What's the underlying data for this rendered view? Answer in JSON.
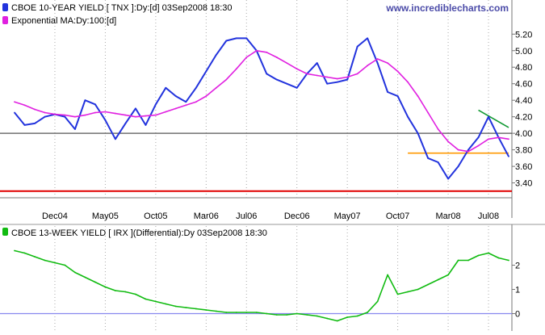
{
  "watermark": "www.incrediblecharts.com",
  "colors": {
    "price": "#2233dd",
    "ema": "#e020e0",
    "differential": "#11bb11",
    "support": "#e00000",
    "resistance": "#ff9900",
    "trendline": "#119933",
    "midline": "#555555",
    "zeroline": "#8888ee",
    "grid": "#aaaaaa",
    "watermark": "#4b4ba8"
  },
  "chart_data": [
    {
      "type": "line",
      "legend": [
        {
          "label": "CBOE 10-YEAR YIELD [ TNX ]:Dy:[d]  03Sep2008 18:30",
          "color": "#2233dd"
        },
        {
          "label": "Exponential MA:Dy:100:[d]",
          "color": "#e020e0"
        }
      ],
      "x_ticks": [
        "Dec04",
        "May05",
        "Oct05",
        "Mar06",
        "Jul06",
        "Dec06",
        "May07",
        "Oct07",
        "Mar08",
        "Jul08"
      ],
      "y_ticks": [
        "3.40",
        "3.60",
        "3.80",
        "4.00",
        "4.20",
        "4.40",
        "4.60",
        "4.80",
        "5.00",
        "5.20"
      ],
      "ylim": [
        3.22,
        5.32
      ],
      "x": [
        "Aug04",
        "Sep04",
        "Oct04",
        "Nov04",
        "Dec04",
        "Jan05",
        "Feb05",
        "Mar05",
        "Apr05",
        "May05",
        "Jun05",
        "Jul05",
        "Aug05",
        "Sep05",
        "Oct05",
        "Nov05",
        "Dec05",
        "Jan06",
        "Feb06",
        "Mar06",
        "Apr06",
        "May06",
        "Jun06",
        "Jul06",
        "Aug06",
        "Sep06",
        "Oct06",
        "Nov06",
        "Dec06",
        "Jan07",
        "Feb07",
        "Mar07",
        "Apr07",
        "May07",
        "Jun07",
        "Jul07",
        "Aug07",
        "Sep07",
        "Oct07",
        "Nov07",
        "Dec07",
        "Jan08",
        "Feb08",
        "Mar08",
        "Apr08",
        "May08",
        "Jun08",
        "Jul08",
        "Aug08",
        "Sep08"
      ],
      "series": [
        {
          "name": "CBOE 10-YEAR YIELD [ TNX ]",
          "values": [
            4.25,
            4.1,
            4.12,
            4.2,
            4.23,
            4.2,
            4.05,
            4.4,
            4.35,
            4.16,
            3.93,
            4.12,
            4.3,
            4.1,
            4.35,
            4.55,
            4.45,
            4.38,
            4.55,
            4.75,
            4.95,
            5.12,
            5.15,
            5.15,
            5.0,
            4.72,
            4.65,
            4.6,
            4.55,
            4.72,
            4.85,
            4.6,
            4.62,
            4.65,
            5.05,
            5.15,
            4.85,
            4.5,
            4.45,
            4.2,
            4.0,
            3.7,
            3.65,
            3.45,
            3.6,
            3.8,
            3.95,
            4.2,
            3.95,
            3.72
          ]
        },
        {
          "name": "Exponential MA:Dy:100",
          "values": [
            4.38,
            4.34,
            4.29,
            4.25,
            4.23,
            4.22,
            4.2,
            4.22,
            4.25,
            4.26,
            4.24,
            4.22,
            4.2,
            4.21,
            4.22,
            4.26,
            4.3,
            4.34,
            4.38,
            4.45,
            4.55,
            4.65,
            4.78,
            4.92,
            5.0,
            4.98,
            4.92,
            4.85,
            4.78,
            4.72,
            4.7,
            4.68,
            4.66,
            4.68,
            4.72,
            4.82,
            4.9,
            4.85,
            4.75,
            4.62,
            4.45,
            4.25,
            4.05,
            3.9,
            3.8,
            3.78,
            3.85,
            3.93,
            3.95,
            3.93
          ]
        }
      ],
      "reference_lines": [
        {
          "kind": "horizontal",
          "y": 4.0,
          "color": "#555555"
        },
        {
          "kind": "horizontal",
          "y": 3.3,
          "color": "#e00000"
        },
        {
          "kind": "segment",
          "from": [
            "Nov07",
            3.76
          ],
          "to": [
            "Sep08",
            3.76
          ],
          "color": "#ff9900"
        },
        {
          "kind": "segment",
          "from": [
            "Jun08",
            4.28
          ],
          "to": [
            "Sep08",
            4.07
          ],
          "color": "#119933"
        }
      ]
    },
    {
      "type": "line",
      "legend": [
        {
          "label": "CBOE 13-WEEK YIELD [ IRX ](Differential):Dy  03Sep2008 18:30",
          "color": "#11bb11"
        }
      ],
      "y_ticks": [
        "0",
        "1",
        "2"
      ],
      "ylim": [
        -0.55,
        2.95
      ],
      "x": [
        "Aug04",
        "Sep04",
        "Oct04",
        "Nov04",
        "Dec04",
        "Jan05",
        "Feb05",
        "Mar05",
        "Apr05",
        "May05",
        "Jun05",
        "Jul05",
        "Aug05",
        "Sep05",
        "Oct05",
        "Nov05",
        "Dec05",
        "Jan06",
        "Feb06",
        "Mar06",
        "Apr06",
        "May06",
        "Jun06",
        "Jul06",
        "Aug06",
        "Sep06",
        "Oct06",
        "Nov06",
        "Dec06",
        "Jan07",
        "Feb07",
        "Mar07",
        "Apr07",
        "May07",
        "Jun07",
        "Jul07",
        "Aug07",
        "Sep07",
        "Oct07",
        "Nov07",
        "Dec07",
        "Jan08",
        "Feb08",
        "Mar08",
        "Apr08",
        "May08",
        "Jun08",
        "Jul08",
        "Aug08",
        "Sep08"
      ],
      "series": [
        {
          "name": "CBOE 13-WEEK YIELD [ IRX ](Differential)",
          "values": [
            2.6,
            2.5,
            2.35,
            2.2,
            2.1,
            2.0,
            1.7,
            1.5,
            1.3,
            1.1,
            0.95,
            0.9,
            0.8,
            0.6,
            0.5,
            0.4,
            0.3,
            0.25,
            0.2,
            0.15,
            0.1,
            0.05,
            0.05,
            0.05,
            0.05,
            0.0,
            -0.05,
            -0.05,
            0.0,
            -0.05,
            -0.1,
            -0.2,
            -0.3,
            -0.15,
            -0.1,
            0.05,
            0.5,
            1.6,
            0.8,
            0.9,
            1.0,
            1.2,
            1.4,
            1.6,
            2.2,
            2.2,
            2.4,
            2.5,
            2.3,
            2.2
          ]
        }
      ],
      "reference_lines": [
        {
          "kind": "horizontal",
          "y": 0,
          "color": "#8888ee"
        }
      ]
    }
  ]
}
